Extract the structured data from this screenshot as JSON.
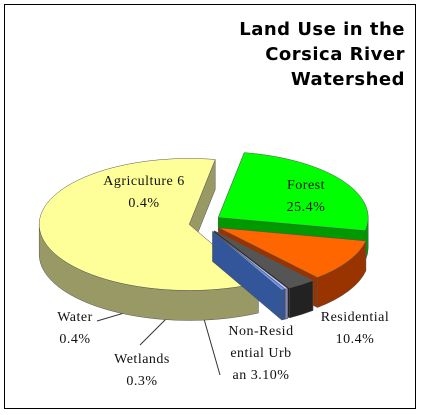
{
  "chart_data": {
    "type": "pie3d",
    "title": "Land Use in the Corsica River Watershed",
    "categories": [
      "Forest",
      "Residential",
      "Non-Residential Urban",
      "Wetlands",
      "Water",
      "Agriculture"
    ],
    "values": [
      25.4,
      10.4,
      3.1,
      0.3,
      0.4,
      60.4
    ],
    "value_labels": [
      "25.4%",
      "10.4%",
      "3.10%",
      "0.3%",
      "0.4%",
      "60.4%"
    ],
    "colors": [
      "#00ff00",
      "#ff6600",
      "#555555",
      "#ccccff",
      "#6699ff",
      "#ffff99"
    ],
    "side_colors": [
      "#009900",
      "#993300",
      "#222222",
      "#8888bb",
      "#335599",
      "#999966"
    ]
  }
}
